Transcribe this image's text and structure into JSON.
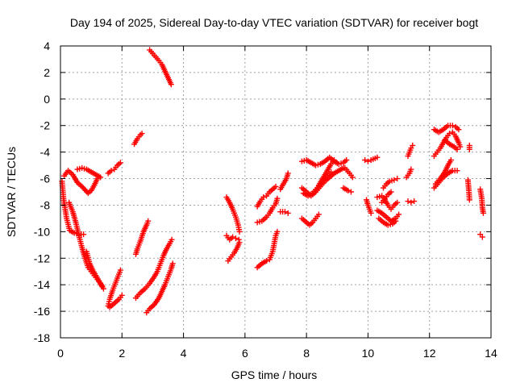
{
  "chart_data": {
    "type": "scatter",
    "title": "Day 194 of 2025, Sidereal Day-to-day VTEC variation (SDTVAR) for receiver bogt",
    "xlabel": "GPS time / hours",
    "ylabel": "SDTVAR / TECUs",
    "xlim": [
      0,
      14
    ],
    "ylim": [
      -18,
      4
    ],
    "xticks": [
      "0",
      "2",
      "4",
      "6",
      "8",
      "10",
      "12",
      "14"
    ],
    "yticks": [
      "-18",
      "-16",
      "-14",
      "-12",
      "-10",
      "-8",
      "-6",
      "-4",
      "-2",
      "0",
      "2",
      "4"
    ],
    "grid": true,
    "marker": "+",
    "marker_color": "#ff0000",
    "segments": [
      [
        [
          0.12,
          -5.8
        ],
        [
          0.25,
          -5.4
        ],
        [
          0.4,
          -5.7
        ],
        [
          0.55,
          -6.3
        ],
        [
          0.7,
          -6.6
        ],
        [
          0.9,
          -7.1
        ],
        [
          1.0,
          -6.9
        ],
        [
          1.1,
          -6.5
        ],
        [
          1.2,
          -6.0
        ]
      ],
      [
        [
          0.55,
          -5.3
        ],
        [
          0.7,
          -5.2
        ],
        [
          0.85,
          -5.3
        ],
        [
          1.0,
          -5.5
        ],
        [
          1.15,
          -5.7
        ],
        [
          1.3,
          -5.9
        ]
      ],
      [
        [
          0.05,
          -6.2
        ],
        [
          0.1,
          -7.5
        ],
        [
          0.2,
          -9.0
        ],
        [
          0.3,
          -9.9
        ],
        [
          0.45,
          -10.1
        ],
        [
          0.6,
          -10.2
        ],
        [
          0.75,
          -10.2
        ]
      ],
      [
        [
          0.28,
          -7.8
        ],
        [
          0.4,
          -8.5
        ],
        [
          0.5,
          -9.3
        ],
        [
          0.6,
          -10.3
        ],
        [
          0.7,
          -11.2
        ],
        [
          0.8,
          -12.0
        ],
        [
          0.9,
          -12.7
        ],
        [
          1.0,
          -13.0
        ],
        [
          1.1,
          -13.3
        ],
        [
          1.2,
          -13.6
        ],
        [
          1.3,
          -13.9
        ],
        [
          1.4,
          -14.3
        ]
      ],
      [
        [
          0.85,
          -11.5
        ],
        [
          0.95,
          -12.4
        ],
        [
          1.05,
          -12.9
        ],
        [
          1.15,
          -13.3
        ],
        [
          1.25,
          -13.7
        ],
        [
          1.35,
          -14.1
        ]
      ],
      [
        [
          1.55,
          -5.6
        ],
        [
          1.65,
          -5.4
        ],
        [
          1.75,
          -5.3
        ],
        [
          1.85,
          -5.0
        ],
        [
          1.95,
          -4.8
        ]
      ],
      [
        [
          1.55,
          -15.6
        ],
        [
          1.6,
          -15.1
        ],
        [
          1.7,
          -14.4
        ],
        [
          1.8,
          -13.8
        ],
        [
          1.9,
          -13.2
        ],
        [
          1.95,
          -12.9
        ]
      ],
      [
        [
          1.6,
          -15.7
        ],
        [
          1.75,
          -15.4
        ],
        [
          1.9,
          -15.1
        ],
        [
          2.0,
          -14.8
        ]
      ],
      [
        [
          2.4,
          -3.4
        ],
        [
          2.5,
          -3.0
        ],
        [
          2.6,
          -2.7
        ],
        [
          2.65,
          -2.6
        ]
      ],
      [
        [
          2.45,
          -11.7
        ],
        [
          2.5,
          -11.3
        ],
        [
          2.6,
          -10.7
        ],
        [
          2.7,
          -10.0
        ],
        [
          2.8,
          -9.5
        ],
        [
          2.85,
          -9.2
        ]
      ],
      [
        [
          2.45,
          -15.0
        ],
        [
          2.6,
          -14.6
        ],
        [
          2.75,
          -14.3
        ],
        [
          2.9,
          -13.9
        ],
        [
          3.05,
          -13.4
        ],
        [
          3.15,
          -13.0
        ],
        [
          3.25,
          -12.4
        ],
        [
          3.35,
          -11.8
        ],
        [
          3.45,
          -11.3
        ],
        [
          3.55,
          -10.9
        ],
        [
          3.62,
          -10.6
        ]
      ],
      [
        [
          2.8,
          -16.1
        ],
        [
          2.9,
          -15.8
        ],
        [
          3.05,
          -15.5
        ],
        [
          3.2,
          -15.0
        ],
        [
          3.3,
          -14.5
        ],
        [
          3.4,
          -14.0
        ],
        [
          3.5,
          -13.4
        ],
        [
          3.6,
          -12.8
        ],
        [
          3.65,
          -12.4
        ]
      ],
      [
        [
          2.9,
          3.7
        ],
        [
          3.05,
          3.3
        ],
        [
          3.2,
          2.9
        ],
        [
          3.3,
          2.6
        ],
        [
          3.4,
          2.1
        ],
        [
          3.5,
          1.6
        ],
        [
          3.6,
          1.1
        ]
      ],
      [
        [
          5.4,
          -7.4
        ],
        [
          5.5,
          -7.8
        ],
        [
          5.6,
          -8.3
        ],
        [
          5.7,
          -8.9
        ],
        [
          5.78,
          -9.5
        ],
        [
          5.82,
          -10.0
        ]
      ],
      [
        [
          5.4,
          -10.3
        ],
        [
          5.5,
          -10.6
        ],
        [
          5.6,
          -10.4
        ],
        [
          5.7,
          -10.5
        ],
        [
          5.8,
          -10.6
        ]
      ],
      [
        [
          5.45,
          -12.2
        ],
        [
          5.55,
          -11.9
        ],
        [
          5.65,
          -11.6
        ],
        [
          5.75,
          -11.2
        ],
        [
          5.82,
          -10.8
        ]
      ],
      [
        [
          6.4,
          -12.7
        ],
        [
          6.55,
          -12.4
        ],
        [
          6.7,
          -12.2
        ],
        [
          6.8,
          -12.1
        ],
        [
          6.9,
          -11.5
        ],
        [
          6.95,
          -10.9
        ],
        [
          7.0,
          -10.3
        ],
        [
          7.05,
          -10.0
        ]
      ],
      [
        [
          6.4,
          -9.3
        ],
        [
          6.55,
          -9.2
        ],
        [
          6.7,
          -8.9
        ],
        [
          6.8,
          -8.6
        ],
        [
          6.9,
          -8.2
        ],
        [
          7.0,
          -7.9
        ],
        [
          7.05,
          -7.5
        ]
      ],
      [
        [
          6.4,
          -8.1
        ],
        [
          6.5,
          -7.7
        ],
        [
          6.6,
          -7.4
        ],
        [
          6.7,
          -7.3
        ],
        [
          6.8,
          -7.0
        ],
        [
          6.9,
          -6.8
        ],
        [
          7.0,
          -6.6
        ]
      ],
      [
        [
          7.15,
          -8.5
        ],
        [
          7.3,
          -8.5
        ],
        [
          7.4,
          -8.6
        ]
      ],
      [
        [
          7.15,
          -6.8
        ],
        [
          7.25,
          -6.4
        ],
        [
          7.35,
          -6.0
        ],
        [
          7.4,
          -5.6
        ]
      ],
      [
        [
          7.85,
          -4.7
        ],
        [
          8.0,
          -4.6
        ],
        [
          8.15,
          -4.8
        ],
        [
          8.3,
          -5.0
        ],
        [
          8.45,
          -4.9
        ],
        [
          8.6,
          -4.7
        ],
        [
          8.75,
          -4.4
        ],
        [
          8.9,
          -4.7
        ],
        [
          9.05,
          -4.9
        ],
        [
          9.2,
          -4.8
        ],
        [
          9.3,
          -4.6
        ]
      ],
      [
        [
          7.85,
          -9.0
        ],
        [
          7.95,
          -9.2
        ],
        [
          8.1,
          -9.5
        ],
        [
          8.2,
          -9.3
        ],
        [
          8.3,
          -9.0
        ],
        [
          8.4,
          -8.7
        ]
      ],
      [
        [
          7.85,
          -6.7
        ],
        [
          8.0,
          -7.0
        ],
        [
          8.15,
          -7.3
        ],
        [
          8.3,
          -7.0
        ],
        [
          8.45,
          -6.6
        ],
        [
          8.6,
          -6.2
        ],
        [
          8.75,
          -5.9
        ],
        [
          8.9,
          -5.6
        ],
        [
          9.05,
          -5.4
        ],
        [
          9.2,
          -5.2
        ]
      ],
      [
        [
          7.9,
          -7.1
        ],
        [
          8.05,
          -7.3
        ],
        [
          8.2,
          -7.1
        ],
        [
          8.35,
          -6.7
        ],
        [
          8.5,
          -6.3
        ],
        [
          8.65,
          -5.9
        ],
        [
          8.8,
          -5.5
        ]
      ],
      [
        [
          8.4,
          -6.5
        ],
        [
          8.5,
          -6.1
        ],
        [
          8.6,
          -5.7
        ],
        [
          8.7,
          -5.3
        ],
        [
          8.8,
          -4.9
        ],
        [
          8.9,
          -4.6
        ]
      ],
      [
        [
          9.2,
          -6.7
        ],
        [
          9.35,
          -6.9
        ],
        [
          9.45,
          -7.0
        ]
      ],
      [
        [
          9.25,
          -5.2
        ],
        [
          9.4,
          -5.6
        ],
        [
          9.5,
          -5.9
        ]
      ],
      [
        [
          9.9,
          -4.6
        ],
        [
          10.0,
          -4.7
        ],
        [
          10.1,
          -4.6
        ],
        [
          10.3,
          -4.4
        ]
      ],
      [
        [
          9.95,
          -7.6
        ],
        [
          10.0,
          -8.0
        ],
        [
          10.05,
          -8.3
        ],
        [
          10.1,
          -8.6
        ]
      ],
      [
        [
          10.3,
          -7.4
        ],
        [
          10.45,
          -7.3
        ],
        [
          10.55,
          -7.6
        ],
        [
          10.65,
          -8.0
        ],
        [
          10.75,
          -8.3
        ],
        [
          10.85,
          -8.0
        ],
        [
          10.95,
          -7.8
        ]
      ],
      [
        [
          10.3,
          -8.4
        ],
        [
          10.45,
          -8.6
        ],
        [
          10.6,
          -8.9
        ],
        [
          10.75,
          -9.2
        ],
        [
          10.9,
          -9.0
        ],
        [
          11.0,
          -8.7
        ]
      ],
      [
        [
          10.35,
          -9.0
        ],
        [
          10.5,
          -9.3
        ],
        [
          10.65,
          -9.5
        ],
        [
          10.8,
          -9.4
        ],
        [
          10.9,
          -9.2
        ]
      ],
      [
        [
          10.5,
          -6.7
        ],
        [
          10.6,
          -6.4
        ],
        [
          10.7,
          -6.2
        ],
        [
          10.85,
          -6.1
        ],
        [
          10.95,
          -6.0
        ]
      ],
      [
        [
          10.45,
          -7.8
        ],
        [
          10.55,
          -7.5
        ],
        [
          10.65,
          -7.2
        ],
        [
          10.75,
          -7.0
        ]
      ],
      [
        [
          11.3,
          -4.3
        ],
        [
          11.35,
          -4.0
        ],
        [
          11.4,
          -3.7
        ],
        [
          11.45,
          -3.5
        ]
      ],
      [
        [
          11.25,
          -5.9
        ],
        [
          11.35,
          -5.6
        ],
        [
          11.4,
          -5.3
        ]
      ],
      [
        [
          11.3,
          -7.7
        ],
        [
          11.4,
          -7.8
        ],
        [
          11.5,
          -7.7
        ]
      ],
      [
        [
          12.15,
          -2.3
        ],
        [
          12.3,
          -2.5
        ],
        [
          12.45,
          -2.3
        ],
        [
          12.6,
          -2.0
        ],
        [
          12.75,
          -2.0
        ],
        [
          12.85,
          -2.1
        ],
        [
          12.95,
          -2.3
        ]
      ],
      [
        [
          12.15,
          -4.3
        ],
        [
          12.25,
          -4.0
        ],
        [
          12.35,
          -3.7
        ],
        [
          12.45,
          -3.3
        ],
        [
          12.55,
          -2.9
        ],
        [
          12.65,
          -2.6
        ],
        [
          12.75,
          -2.5
        ],
        [
          12.85,
          -2.8
        ],
        [
          12.95,
          -3.3
        ],
        [
          13.0,
          -3.6
        ]
      ],
      [
        [
          12.15,
          -6.7
        ],
        [
          12.3,
          -6.3
        ],
        [
          12.45,
          -5.9
        ],
        [
          12.6,
          -5.6
        ],
        [
          12.75,
          -5.4
        ],
        [
          12.9,
          -5.4
        ]
      ],
      [
        [
          12.2,
          -6.4
        ],
        [
          12.35,
          -6.0
        ],
        [
          12.5,
          -5.5
        ],
        [
          12.6,
          -5.0
        ],
        [
          12.7,
          -4.6
        ]
      ],
      [
        [
          12.5,
          -3.1
        ],
        [
          12.65,
          -3.4
        ],
        [
          12.8,
          -3.6
        ],
        [
          12.9,
          -3.8
        ]
      ],
      [
        [
          13.3,
          -3.5
        ],
        [
          13.3,
          -3.8
        ]
      ],
      [
        [
          13.25,
          -6.1
        ],
        [
          13.28,
          -6.9
        ],
        [
          13.3,
          -7.6
        ]
      ],
      [
        [
          13.65,
          -6.8
        ],
        [
          13.7,
          -7.5
        ],
        [
          13.72,
          -8.2
        ],
        [
          13.75,
          -8.6
        ]
      ],
      [
        [
          13.65,
          -10.2
        ],
        [
          13.72,
          -10.4
        ]
      ]
    ]
  }
}
